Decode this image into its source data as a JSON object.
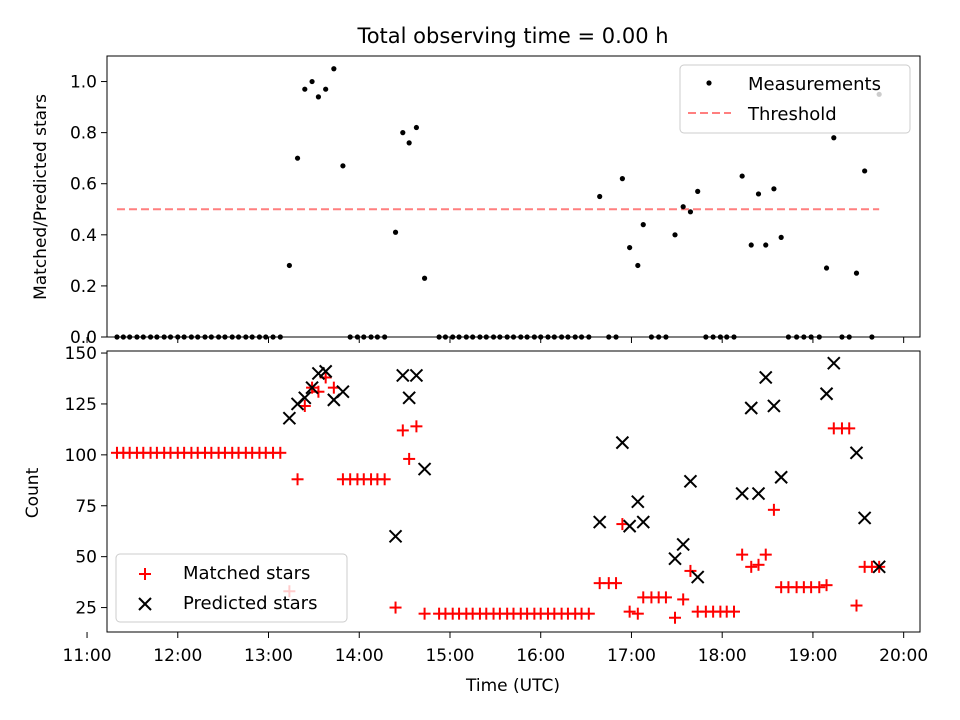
{
  "figure": {
    "title": "Total observing time = 0.00 h",
    "xlabel": "Time (UTC)"
  },
  "chart_data": [
    {
      "type": "scatter",
      "ylabel": "Matched/Predicted stars",
      "xlim": [
        11.22,
        20.18
      ],
      "ylim": [
        0,
        1.1
      ],
      "yticks": [
        "0.0",
        "0.2",
        "0.4",
        "0.6",
        "0.8",
        "1.0"
      ],
      "grid": false,
      "legend_position": "upper right",
      "threshold": {
        "name": "Threshold",
        "value": 0.5,
        "x_range": [
          11.33,
          19.73
        ],
        "color": "#ff7f7f"
      },
      "series": [
        {
          "name": "Measurements",
          "color": "#000000",
          "points": [
            [
              11.33,
              0
            ],
            [
              11.4,
              0
            ],
            [
              11.47,
              0
            ],
            [
              11.55,
              0
            ],
            [
              11.62,
              0
            ],
            [
              11.7,
              0
            ],
            [
              11.77,
              0
            ],
            [
              11.85,
              0
            ],
            [
              11.92,
              0
            ],
            [
              12.0,
              0
            ],
            [
              12.07,
              0
            ],
            [
              12.15,
              0
            ],
            [
              12.22,
              0
            ],
            [
              12.3,
              0
            ],
            [
              12.37,
              0
            ],
            [
              12.45,
              0
            ],
            [
              12.52,
              0
            ],
            [
              12.6,
              0
            ],
            [
              12.67,
              0
            ],
            [
              12.75,
              0
            ],
            [
              12.82,
              0
            ],
            [
              12.9,
              0
            ],
            [
              12.97,
              0
            ],
            [
              13.05,
              0
            ],
            [
              13.13,
              0
            ],
            [
              13.23,
              0.28
            ],
            [
              13.32,
              0.7
            ],
            [
              13.4,
              0.97
            ],
            [
              13.48,
              1.0
            ],
            [
              13.55,
              0.94
            ],
            [
              13.63,
              0.97
            ],
            [
              13.72,
              1.05
            ],
            [
              13.82,
              0.67
            ],
            [
              13.9,
              0
            ],
            [
              13.98,
              0
            ],
            [
              14.05,
              0
            ],
            [
              14.13,
              0
            ],
            [
              14.2,
              0
            ],
            [
              14.28,
              0
            ],
            [
              14.4,
              0.41
            ],
            [
              14.48,
              0.8
            ],
            [
              14.55,
              0.76
            ],
            [
              14.63,
              0.82
            ],
            [
              14.72,
              0.23
            ],
            [
              14.88,
              0
            ],
            [
              14.95,
              0
            ],
            [
              15.03,
              0
            ],
            [
              15.1,
              0
            ],
            [
              15.18,
              0
            ],
            [
              15.25,
              0
            ],
            [
              15.33,
              0
            ],
            [
              15.4,
              0
            ],
            [
              15.48,
              0
            ],
            [
              15.55,
              0
            ],
            [
              15.63,
              0
            ],
            [
              15.7,
              0
            ],
            [
              15.78,
              0
            ],
            [
              15.85,
              0
            ],
            [
              15.93,
              0
            ],
            [
              16.0,
              0
            ],
            [
              16.08,
              0
            ],
            [
              16.15,
              0
            ],
            [
              16.23,
              0
            ],
            [
              16.3,
              0
            ],
            [
              16.38,
              0
            ],
            [
              16.45,
              0
            ],
            [
              16.53,
              0
            ],
            [
              16.65,
              0.55
            ],
            [
              16.75,
              0
            ],
            [
              16.83,
              0
            ],
            [
              16.9,
              0.62
            ],
            [
              16.98,
              0.35
            ],
            [
              17.07,
              0.28
            ],
            [
              17.13,
              0.44
            ],
            [
              17.22,
              0
            ],
            [
              17.3,
              0
            ],
            [
              17.38,
              0
            ],
            [
              17.48,
              0.4
            ],
            [
              17.57,
              0.51
            ],
            [
              17.65,
              0.49
            ],
            [
              17.73,
              0.57
            ],
            [
              17.82,
              0
            ],
            [
              17.9,
              0
            ],
            [
              17.98,
              0
            ],
            [
              18.05,
              0
            ],
            [
              18.13,
              0
            ],
            [
              18.22,
              0.63
            ],
            [
              18.32,
              0.36
            ],
            [
              18.4,
              0.56
            ],
            [
              18.48,
              0.36
            ],
            [
              18.57,
              0.58
            ],
            [
              18.65,
              0.39
            ],
            [
              18.73,
              0
            ],
            [
              18.82,
              0
            ],
            [
              18.9,
              0
            ],
            [
              18.98,
              0
            ],
            [
              19.07,
              0
            ],
            [
              19.15,
              0.27
            ],
            [
              19.23,
              0.78
            ],
            [
              19.32,
              0
            ],
            [
              19.4,
              0
            ],
            [
              19.48,
              0.25
            ],
            [
              19.57,
              0.65
            ],
            [
              19.65,
              0
            ],
            [
              19.73,
              0.95
            ]
          ]
        }
      ]
    },
    {
      "type": "scatter",
      "ylabel": "Count",
      "xlim": [
        11.22,
        20.18
      ],
      "ylim": [
        13,
        151
      ],
      "yticks": [
        "25",
        "50",
        "75",
        "100",
        "125",
        "150"
      ],
      "xticks": [
        "11:00",
        "12:00",
        "13:00",
        "14:00",
        "15:00",
        "16:00",
        "17:00",
        "18:00",
        "19:00",
        "20:00"
      ],
      "grid": false,
      "legend_position": "lower left",
      "series": [
        {
          "name": "Matched stars",
          "marker": "plus",
          "color": "#ff0000",
          "points": [
            [
              11.33,
              101
            ],
            [
              11.4,
              101
            ],
            [
              11.47,
              101
            ],
            [
              11.55,
              101
            ],
            [
              11.62,
              101
            ],
            [
              11.7,
              101
            ],
            [
              11.77,
              101
            ],
            [
              11.85,
              101
            ],
            [
              11.92,
              101
            ],
            [
              12.0,
              101
            ],
            [
              12.07,
              101
            ],
            [
              12.15,
              101
            ],
            [
              12.22,
              101
            ],
            [
              12.3,
              101
            ],
            [
              12.37,
              101
            ],
            [
              12.45,
              101
            ],
            [
              12.52,
              101
            ],
            [
              12.6,
              101
            ],
            [
              12.67,
              101
            ],
            [
              12.75,
              101
            ],
            [
              12.82,
              101
            ],
            [
              12.9,
              101
            ],
            [
              12.97,
              101
            ],
            [
              13.05,
              101
            ],
            [
              13.13,
              101
            ],
            [
              13.23,
              33
            ],
            [
              13.32,
              88
            ],
            [
              13.4,
              124
            ],
            [
              13.48,
              133
            ],
            [
              13.55,
              131
            ],
            [
              13.63,
              138
            ],
            [
              13.72,
              133
            ],
            [
              13.82,
              88
            ],
            [
              13.9,
              88
            ],
            [
              13.98,
              88
            ],
            [
              14.05,
              88
            ],
            [
              14.13,
              88
            ],
            [
              14.2,
              88
            ],
            [
              14.28,
              88
            ],
            [
              14.4,
              25
            ],
            [
              14.48,
              112
            ],
            [
              14.55,
              98
            ],
            [
              14.63,
              114
            ],
            [
              14.72,
              22
            ],
            [
              14.88,
              22
            ],
            [
              14.95,
              22
            ],
            [
              15.03,
              22
            ],
            [
              15.1,
              22
            ],
            [
              15.18,
              22
            ],
            [
              15.25,
              22
            ],
            [
              15.33,
              22
            ],
            [
              15.4,
              22
            ],
            [
              15.48,
              22
            ],
            [
              15.55,
              22
            ],
            [
              15.63,
              22
            ],
            [
              15.7,
              22
            ],
            [
              15.78,
              22
            ],
            [
              15.85,
              22
            ],
            [
              15.93,
              22
            ],
            [
              16.0,
              22
            ],
            [
              16.08,
              22
            ],
            [
              16.15,
              22
            ],
            [
              16.23,
              22
            ],
            [
              16.3,
              22
            ],
            [
              16.38,
              22
            ],
            [
              16.45,
              22
            ],
            [
              16.53,
              22
            ],
            [
              16.65,
              37
            ],
            [
              16.75,
              37
            ],
            [
              16.83,
              37
            ],
            [
              16.9,
              66
            ],
            [
              16.98,
              23
            ],
            [
              17.07,
              22
            ],
            [
              17.13,
              30
            ],
            [
              17.22,
              30
            ],
            [
              17.3,
              30
            ],
            [
              17.38,
              30
            ],
            [
              17.48,
              20
            ],
            [
              17.57,
              29
            ],
            [
              17.65,
              43
            ],
            [
              17.73,
              23
            ],
            [
              17.82,
              23
            ],
            [
              17.9,
              23
            ],
            [
              17.98,
              23
            ],
            [
              18.05,
              23
            ],
            [
              18.13,
              23
            ],
            [
              18.22,
              51
            ],
            [
              18.32,
              45
            ],
            [
              18.4,
              46
            ],
            [
              18.48,
              51
            ],
            [
              18.57,
              73
            ],
            [
              18.65,
              35
            ],
            [
              18.73,
              35
            ],
            [
              18.82,
              35
            ],
            [
              18.9,
              35
            ],
            [
              18.98,
              35
            ],
            [
              19.07,
              35
            ],
            [
              19.15,
              36
            ],
            [
              19.23,
              113
            ],
            [
              19.32,
              113
            ],
            [
              19.4,
              113
            ],
            [
              19.48,
              26
            ],
            [
              19.57,
              45
            ],
            [
              19.65,
              45
            ],
            [
              19.73,
              45
            ]
          ]
        },
        {
          "name": "Predicted stars",
          "marker": "x",
          "color": "#000000",
          "points": [
            [
              13.23,
              118
            ],
            [
              13.32,
              125
            ],
            [
              13.4,
              128
            ],
            [
              13.48,
              133
            ],
            [
              13.55,
              140
            ],
            [
              13.63,
              141
            ],
            [
              13.72,
              127
            ],
            [
              13.82,
              131
            ],
            [
              14.4,
              60
            ],
            [
              14.48,
              139
            ],
            [
              14.55,
              128
            ],
            [
              14.63,
              139
            ],
            [
              14.72,
              93
            ],
            [
              16.65,
              67
            ],
            [
              16.9,
              106
            ],
            [
              16.98,
              65
            ],
            [
              17.07,
              77
            ],
            [
              17.13,
              67
            ],
            [
              17.48,
              49
            ],
            [
              17.57,
              56
            ],
            [
              17.65,
              87
            ],
            [
              17.73,
              40
            ],
            [
              18.22,
              81
            ],
            [
              18.32,
              123
            ],
            [
              18.4,
              81
            ],
            [
              18.48,
              138
            ],
            [
              18.57,
              124
            ],
            [
              18.65,
              89
            ],
            [
              19.15,
              130
            ],
            [
              19.23,
              145
            ],
            [
              19.48,
              101
            ],
            [
              19.57,
              69
            ],
            [
              19.73,
              45
            ]
          ]
        }
      ]
    }
  ]
}
